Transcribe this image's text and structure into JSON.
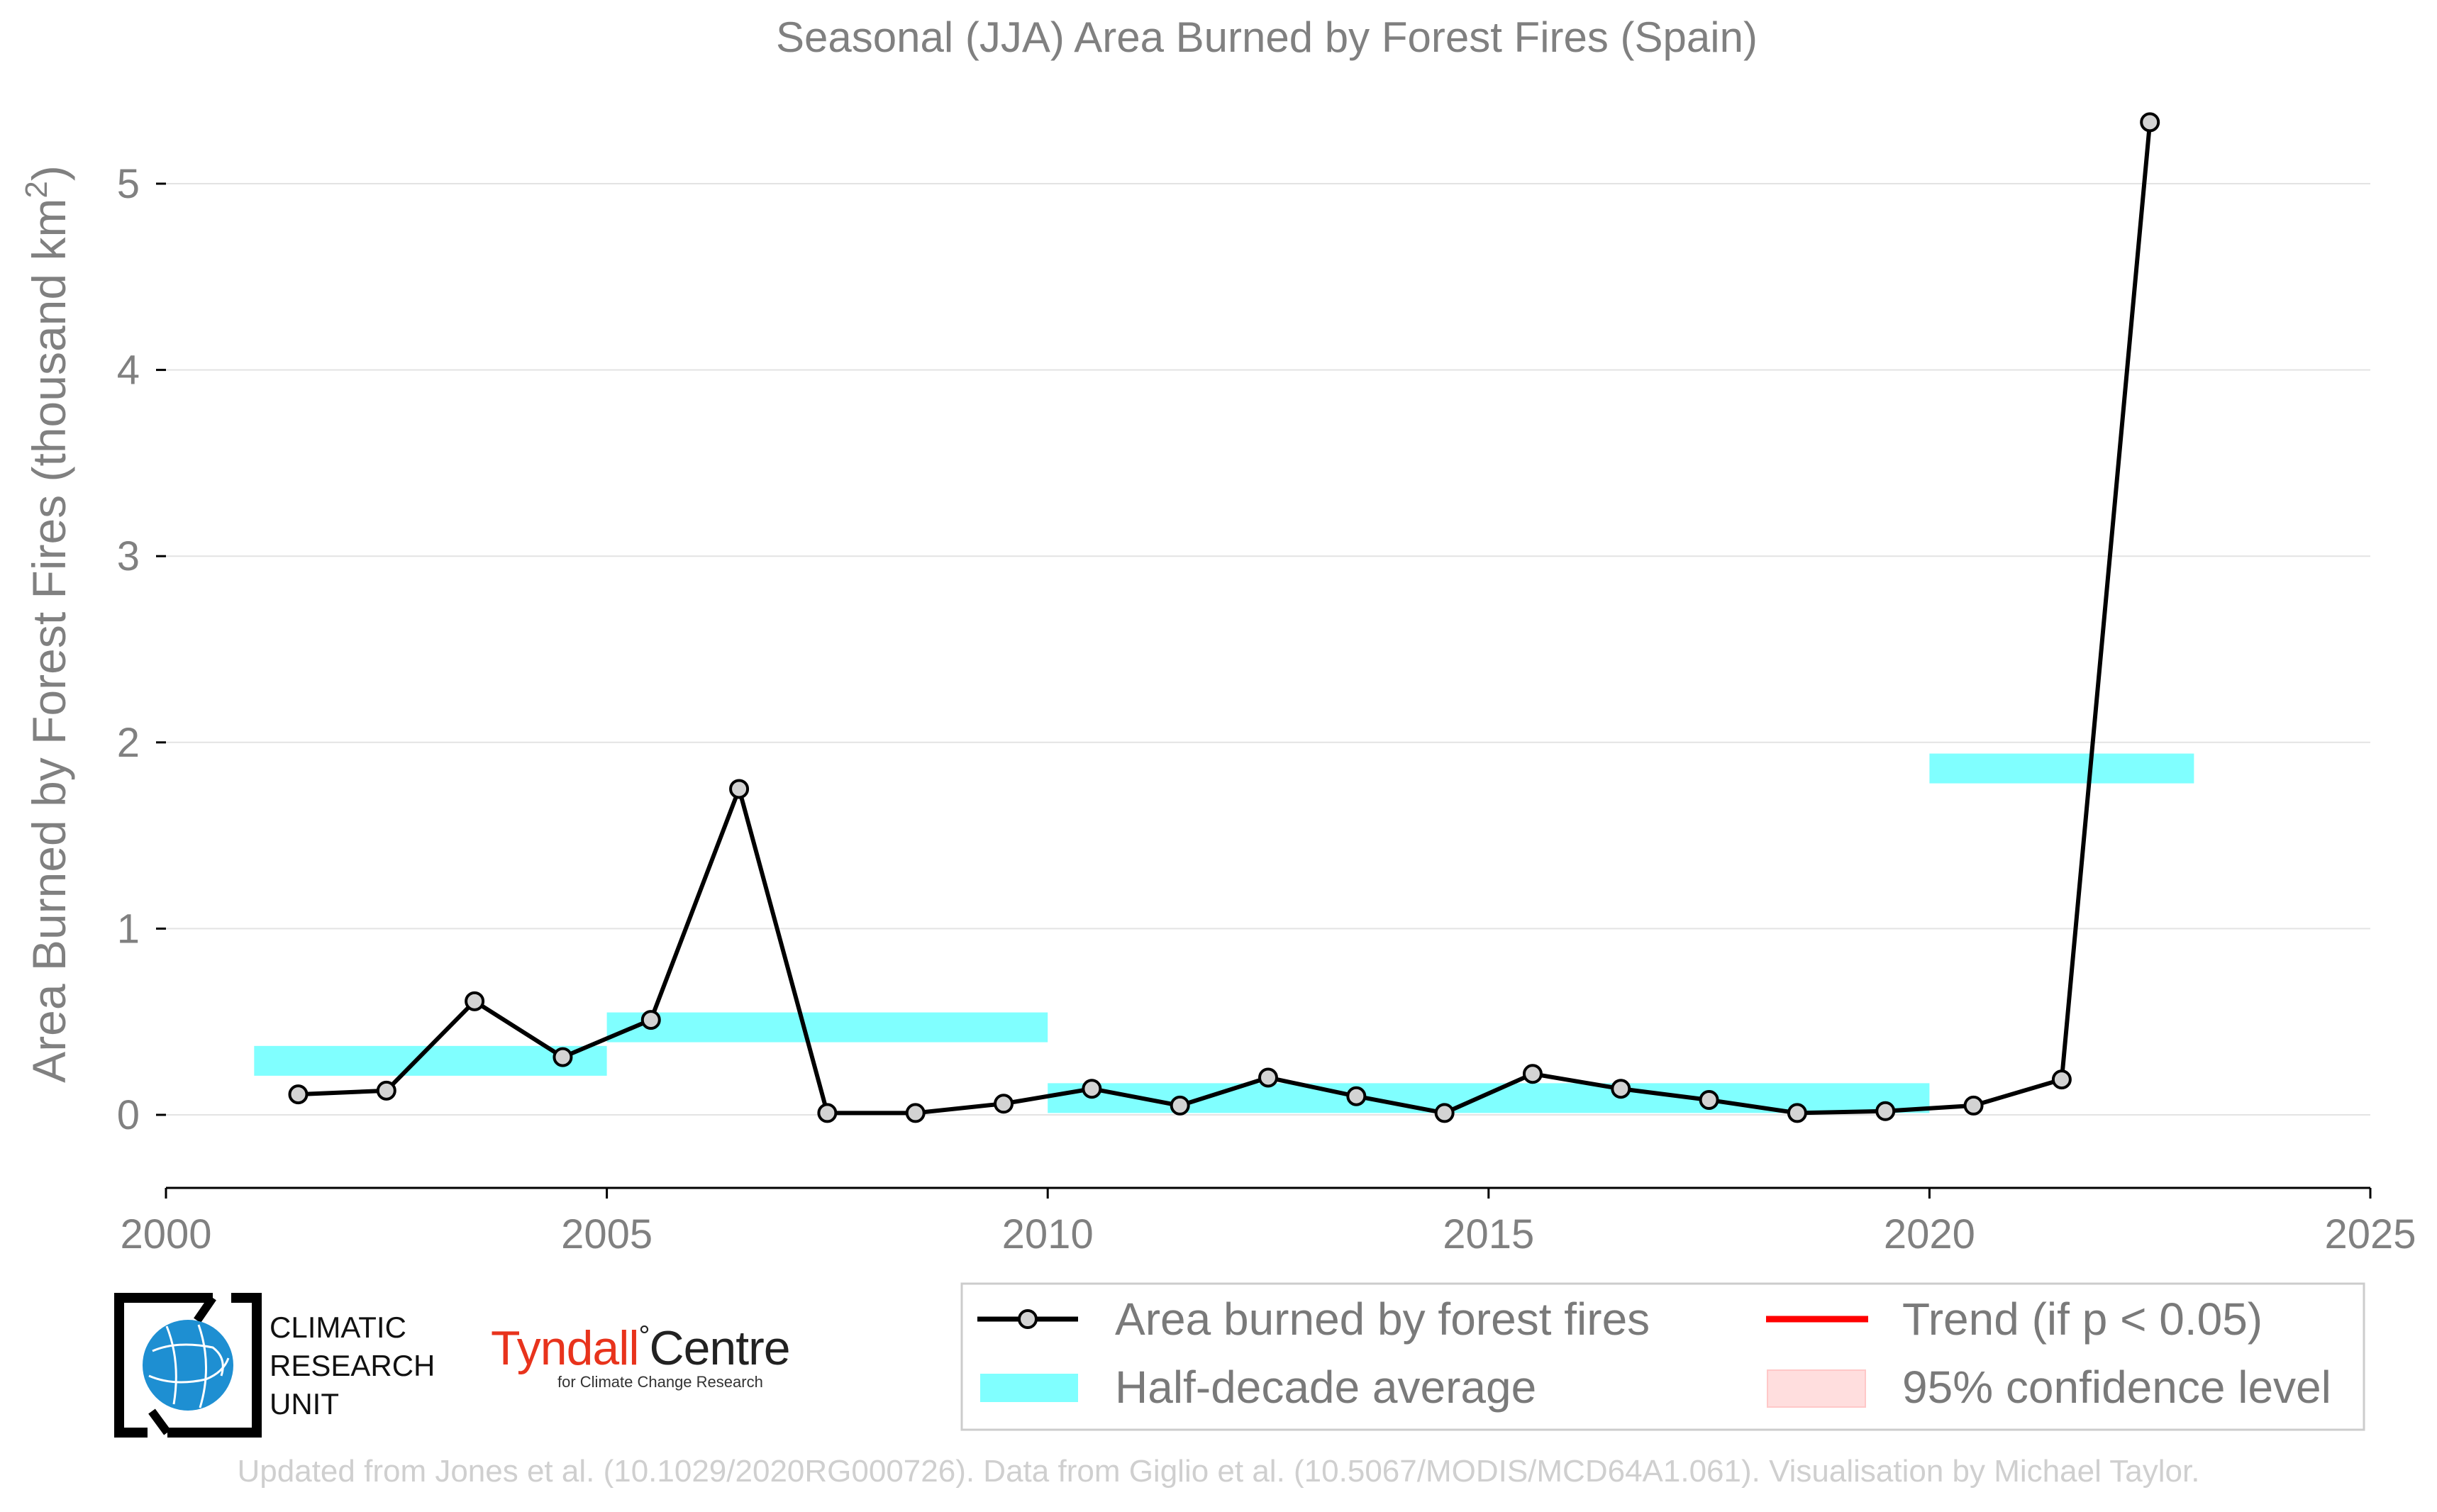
{
  "chart_data": {
    "type": "line",
    "title": "Seasonal (JJA) Area Burned by Forest Fires (Spain)",
    "ylabel": "Area Burned by Forest Fires (thousand km²)",
    "ylabel_main": "Area Burned by Forest Fires (thousand km",
    "ylabel_sup": "2",
    "ylabel_close": ")",
    "xlabel": "",
    "xlim": [
      2000,
      2025
    ],
    "ylim": [
      -0.4,
      5.5
    ],
    "xticks": [
      2000,
      2005,
      2010,
      2015,
      2020,
      2025
    ],
    "yticks": [
      0,
      1,
      2,
      3,
      4,
      5
    ],
    "grid": "horizontal",
    "series": [
      {
        "name": "Area burned by forest fires",
        "color": "#000000",
        "marker_fill": "#d3d3d3",
        "x": [
          2001.5,
          2002.5,
          2003.5,
          2004.5,
          2005.5,
          2006.5,
          2007.5,
          2008.5,
          2009.5,
          2010.5,
          2011.5,
          2012.5,
          2013.5,
          2014.5,
          2015.5,
          2016.5,
          2017.5,
          2018.5,
          2019.5,
          2020.5,
          2021.5,
          2022.5
        ],
        "values": [
          0.11,
          0.13,
          0.61,
          0.31,
          0.51,
          1.75,
          0.01,
          0.01,
          0.06,
          0.14,
          0.05,
          0.2,
          0.1,
          0.01,
          0.22,
          0.14,
          0.08,
          0.01,
          0.02,
          0.05,
          0.19,
          5.33
        ]
      }
    ],
    "half_decade_averages": {
      "name": "Half-decade average",
      "color": "#80ffff",
      "bands": [
        {
          "x0": 2001,
          "x1": 2005,
          "y": 0.29
        },
        {
          "x0": 2005,
          "x1": 2010,
          "y": 0.47
        },
        {
          "x0": 2010,
          "x1": 2020,
          "y": 0.09
        },
        {
          "x0": 2020,
          "x1": 2023,
          "y": 1.86
        }
      ]
    },
    "legend": {
      "placement": "bottom-right",
      "entries": [
        {
          "label": "Area burned by forest fires",
          "style": "line-marker",
          "color": "#000000"
        },
        {
          "label": "Trend (if p < 0.05)",
          "style": "line",
          "color": "#ff0000"
        },
        {
          "label": "Half-decade average",
          "style": "band",
          "color": "#80ffff"
        },
        {
          "label": "95% confidence level",
          "style": "band",
          "color": "#ffdede"
        }
      ]
    }
  },
  "logos": {
    "cru": {
      "lines": [
        "CLIMATIC",
        "RESEARCH",
        "UNIT"
      ],
      "icon": "globe-icon"
    },
    "tyndall": {
      "name": "Tyndall",
      "degree": "°",
      "centre": "Centre",
      "sub": "for Climate Change Research"
    }
  },
  "footer": "Updated from Jones et al. (10.1029/2020RG000726). Data from Giglio et al. (10.5067/MODIS/MCD64A1.061). Visualisation by Michael Taylor."
}
